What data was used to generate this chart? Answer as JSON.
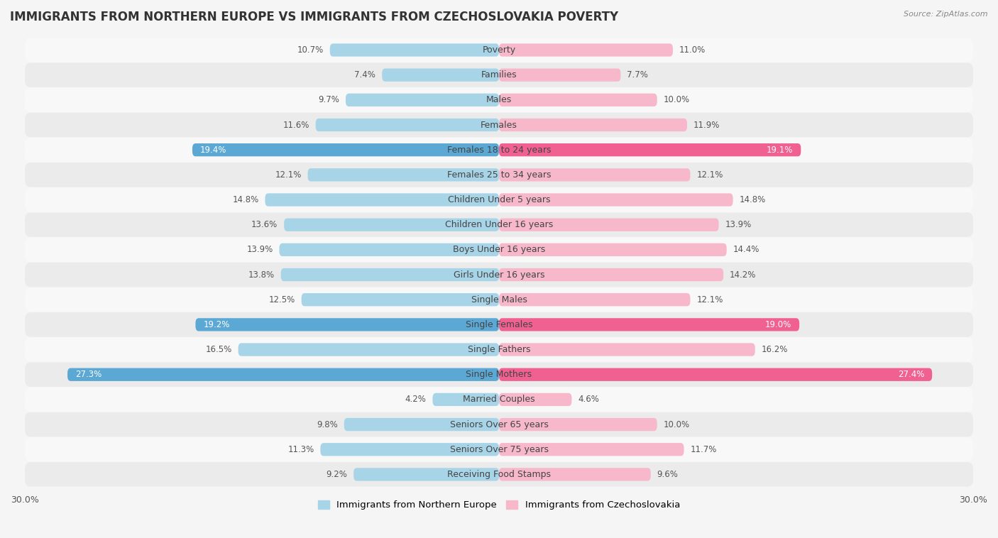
{
  "title": "IMMIGRANTS FROM NORTHERN EUROPE VS IMMIGRANTS FROM CZECHOSLOVAKIA POVERTY",
  "source": "Source: ZipAtlas.com",
  "categories": [
    "Poverty",
    "Families",
    "Males",
    "Females",
    "Females 18 to 24 years",
    "Females 25 to 34 years",
    "Children Under 5 years",
    "Children Under 16 years",
    "Boys Under 16 years",
    "Girls Under 16 years",
    "Single Males",
    "Single Females",
    "Single Fathers",
    "Single Mothers",
    "Married Couples",
    "Seniors Over 65 years",
    "Seniors Over 75 years",
    "Receiving Food Stamps"
  ],
  "left_values": [
    10.7,
    7.4,
    9.7,
    11.6,
    19.4,
    12.1,
    14.8,
    13.6,
    13.9,
    13.8,
    12.5,
    19.2,
    16.5,
    27.3,
    4.2,
    9.8,
    11.3,
    9.2
  ],
  "right_values": [
    11.0,
    7.7,
    10.0,
    11.9,
    19.1,
    12.1,
    14.8,
    13.9,
    14.4,
    14.2,
    12.1,
    19.0,
    16.2,
    27.4,
    4.6,
    10.0,
    11.7,
    9.6
  ],
  "left_color_normal": "#a8d4e8",
  "right_color_normal": "#f7b8cc",
  "left_color_highlight": "#5ba8d4",
  "right_color_highlight": "#f06090",
  "highlight_indices": [
    4,
    11,
    13
  ],
  "bg_color_light": "#f8f8f8",
  "bg_color_dark": "#ebebeb",
  "xlim": 30.0,
  "legend_left": "Immigrants from Northern Europe",
  "legend_right": "Immigrants from Czechoslovakia",
  "title_fontsize": 12,
  "label_fontsize": 9,
  "value_fontsize": 8.5
}
